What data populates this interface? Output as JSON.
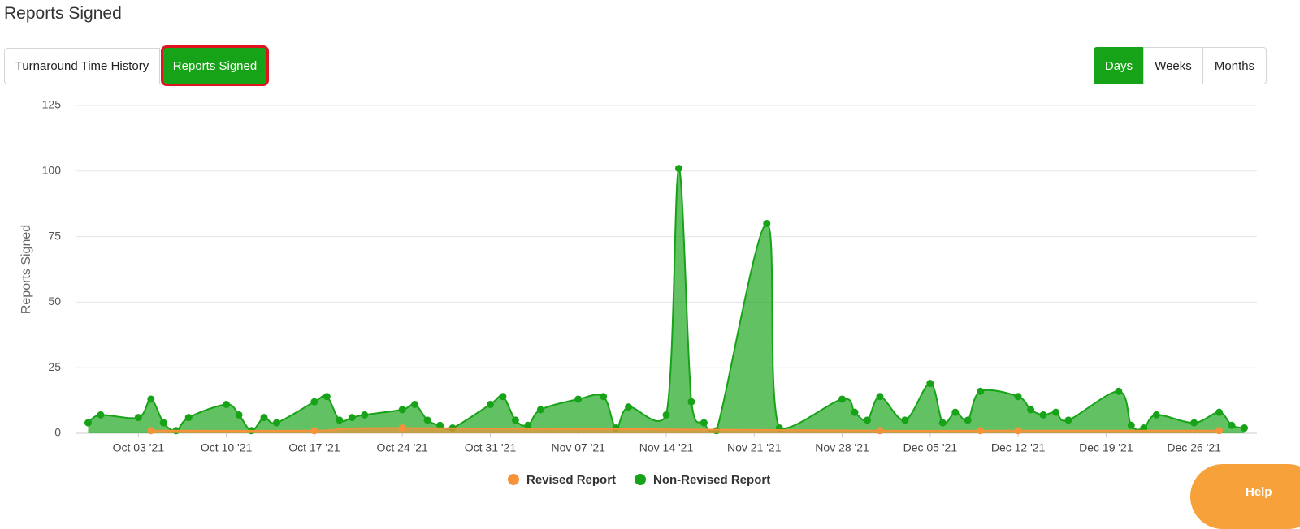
{
  "header": {
    "title": "Reports Signed"
  },
  "tabs": [
    "Turnaround Time History",
    "Reports Signed"
  ],
  "range_buttons": [
    "Days",
    "Weeks",
    "Months"
  ],
  "help_label": "Help",
  "chart_data": {
    "type": "area-spline",
    "y_label": "Reports Signed",
    "xlim": [
      "2021-09-28",
      "2021-12-31"
    ],
    "xticks": [
      {
        "value": "2021-10-03",
        "label": "Oct 03 '21"
      },
      {
        "value": "2021-10-10",
        "label": "Oct 10 '21"
      },
      {
        "value": "2021-10-17",
        "label": "Oct 17 '21"
      },
      {
        "value": "2021-10-24",
        "label": "Oct 24 '21"
      },
      {
        "value": "2021-10-31",
        "label": "Oct 31 '21"
      },
      {
        "value": "2021-11-07",
        "label": "Nov 07 '21"
      },
      {
        "value": "2021-11-14",
        "label": "Nov 14 '21"
      },
      {
        "value": "2021-11-21",
        "label": "Nov 21 '21"
      },
      {
        "value": "2021-11-28",
        "label": "Nov 28 '21"
      },
      {
        "value": "2021-12-05",
        "label": "Dec 05 '21"
      },
      {
        "value": "2021-12-12",
        "label": "Dec 12 '21"
      },
      {
        "value": "2021-12-19",
        "label": "Dec 19 '21"
      },
      {
        "value": "2021-12-26",
        "label": "Dec 26 '21"
      }
    ],
    "ylim": [
      0,
      125
    ],
    "yticks": [
      0,
      25,
      50,
      75,
      100,
      125
    ],
    "grid": true,
    "series": [
      {
        "name": "Revised Report",
        "color": "#f7923a",
        "x": [
          "2021-10-04",
          "2021-10-17",
          "2021-10-24",
          "2021-12-01",
          "2021-12-09",
          "2021-12-12",
          "2021-12-28"
        ],
        "values": [
          1,
          1,
          2,
          1,
          1,
          1,
          1
        ]
      },
      {
        "name": "Non-Revised Report",
        "color": "#17a317",
        "x": [
          "2021-09-29",
          "2021-09-30",
          "2021-10-03",
          "2021-10-04",
          "2021-10-05",
          "2021-10-06",
          "2021-10-07",
          "2021-10-10",
          "2021-10-11",
          "2021-10-12",
          "2021-10-13",
          "2021-10-14",
          "2021-10-17",
          "2021-10-18",
          "2021-10-19",
          "2021-10-20",
          "2021-10-21",
          "2021-10-24",
          "2021-10-25",
          "2021-10-26",
          "2021-10-27",
          "2021-10-28",
          "2021-10-31",
          "2021-11-01",
          "2021-11-02",
          "2021-11-03",
          "2021-11-04",
          "2021-11-07",
          "2021-11-09",
          "2021-11-10",
          "2021-11-11",
          "2021-11-14",
          "2021-11-15",
          "2021-11-16",
          "2021-11-17",
          "2021-11-18",
          "2021-11-22",
          "2021-11-23",
          "2021-11-28",
          "2021-11-29",
          "2021-11-30",
          "2021-12-01",
          "2021-12-03",
          "2021-12-05",
          "2021-12-06",
          "2021-12-07",
          "2021-12-08",
          "2021-12-09",
          "2021-12-12",
          "2021-12-13",
          "2021-12-14",
          "2021-12-15",
          "2021-12-16",
          "2021-12-20",
          "2021-12-21",
          "2021-12-22",
          "2021-12-23",
          "2021-12-26",
          "2021-12-28",
          "2021-12-29",
          "2021-12-30"
        ],
        "values": [
          4,
          7,
          6,
          13,
          4,
          1,
          6,
          11,
          7,
          1,
          6,
          4,
          12,
          14,
          5,
          6,
          7,
          9,
          11,
          5,
          3,
          2,
          11,
          14,
          5,
          3,
          9,
          13,
          14,
          2,
          10,
          7,
          101,
          12,
          4,
          1,
          80,
          2,
          13,
          8,
          5,
          14,
          5,
          19,
          4,
          8,
          5,
          16,
          14,
          9,
          7,
          8,
          5,
          16,
          3,
          2,
          7,
          4,
          8,
          3,
          2
        ]
      }
    ],
    "legend": "bottom"
  }
}
